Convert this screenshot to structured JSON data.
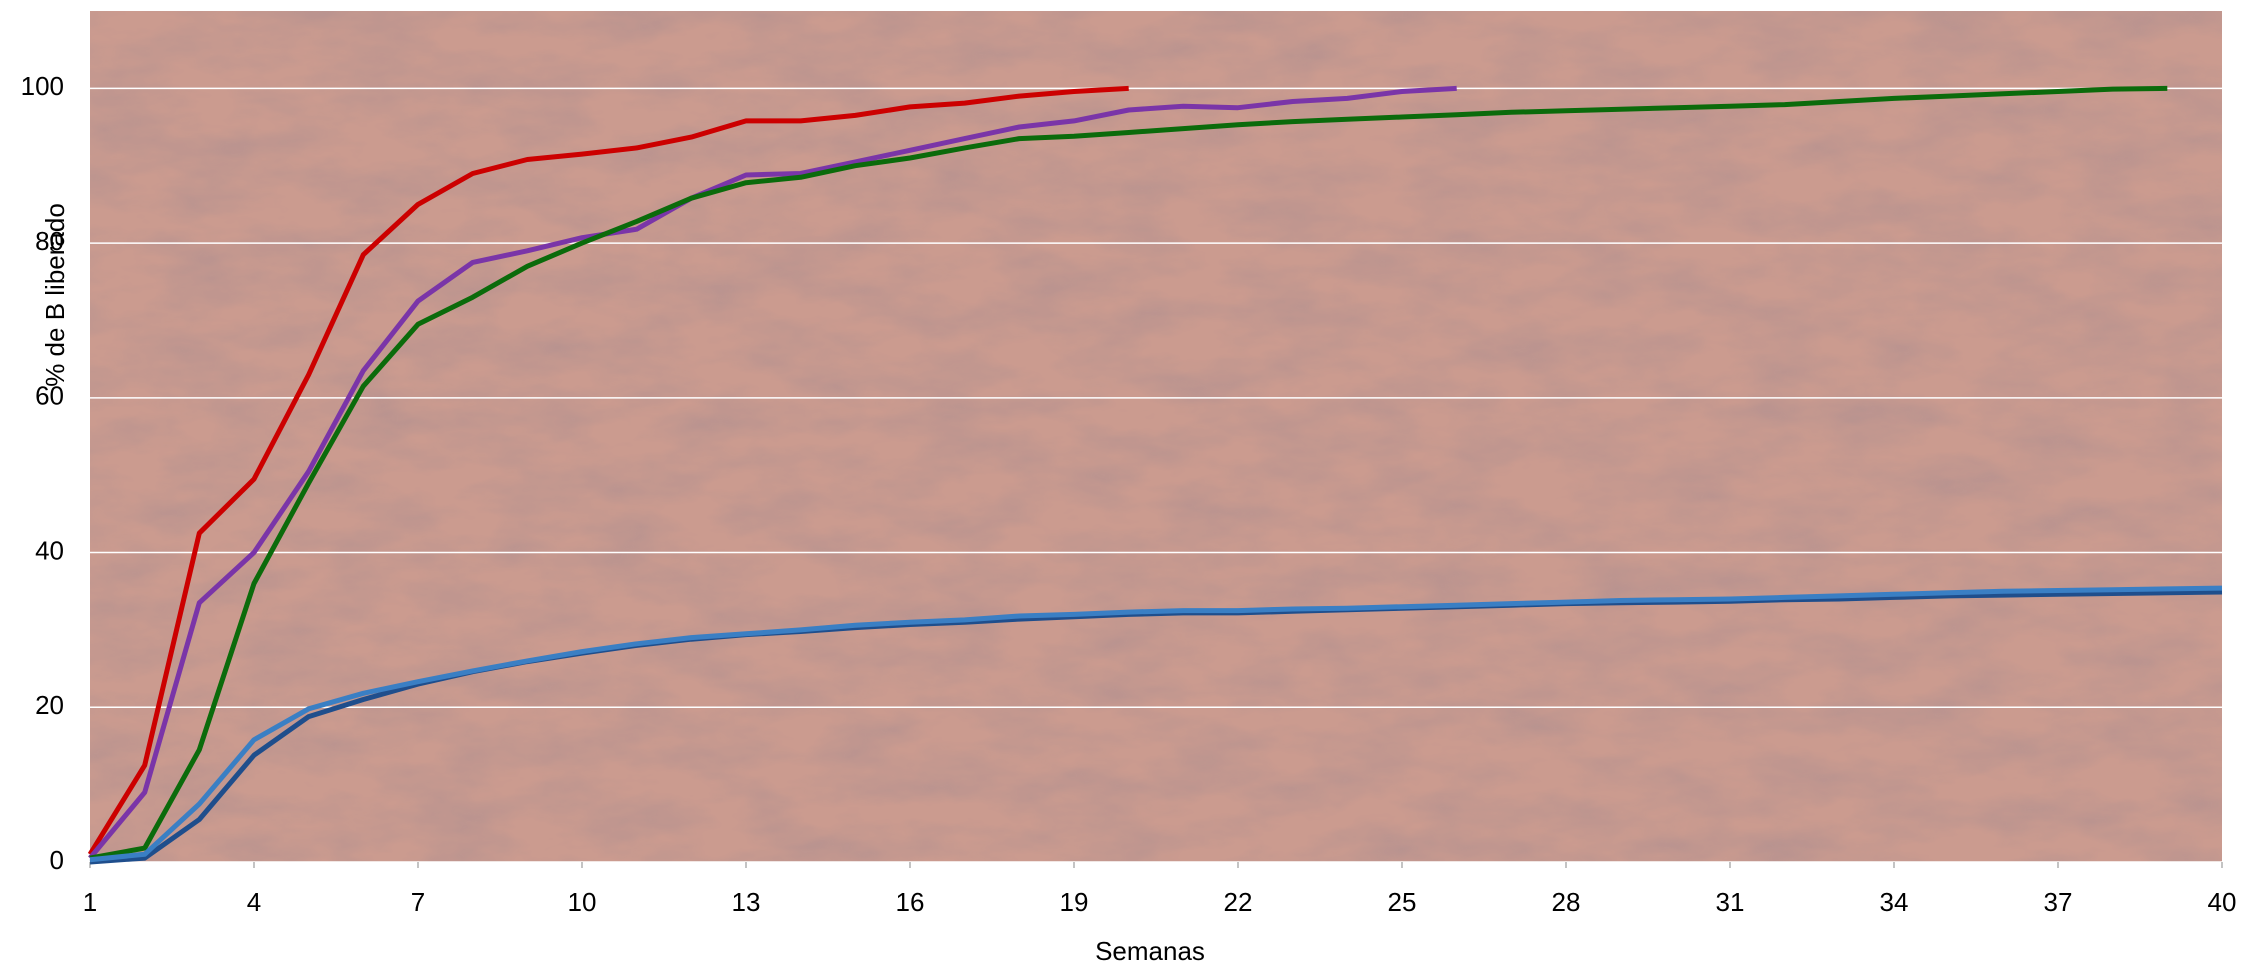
{
  "chart_data": {
    "type": "line",
    "x_label": "Semanas",
    "y_label": "% de B liberado",
    "x": [
      1,
      2,
      3,
      4,
      5,
      6,
      7,
      8,
      9,
      10,
      11,
      12,
      13,
      14,
      15,
      16,
      17,
      18,
      19,
      20,
      21,
      22,
      23,
      24,
      25,
      26,
      27,
      28,
      29,
      30,
      31,
      32,
      33,
      34,
      35,
      36,
      37,
      38,
      39,
      40
    ],
    "xlim": [
      1,
      40
    ],
    "xticks": [
      1,
      4,
      7,
      10,
      13,
      16,
      19,
      22,
      25,
      28,
      31,
      34,
      37,
      40
    ],
    "ylim": [
      0,
      110
    ],
    "yticks": [
      0,
      20,
      40,
      60,
      80,
      100
    ],
    "grid": true,
    "series": [
      {
        "color": "#cc0000",
        "values": [
          1,
          12.5,
          42.5,
          49.5,
          63,
          78.5,
          85,
          89,
          90.8,
          91.5,
          92.3,
          93.7,
          95.8,
          95.8,
          96.5,
          97.6,
          98.1,
          99,
          99.6,
          100,
          null,
          null,
          null,
          null,
          null,
          null,
          null,
          null,
          null,
          null,
          null,
          null,
          null,
          null,
          null,
          null,
          null,
          null,
          null,
          null
        ]
      },
      {
        "color": "#7a35a8",
        "values": [
          0.5,
          9,
          33.5,
          40,
          50.5,
          63.5,
          72.5,
          77.5,
          79,
          80.7,
          81.8,
          85.8,
          88.8,
          89,
          90.5,
          92,
          93.5,
          95,
          95.8,
          97.2,
          97.7,
          97.5,
          98.3,
          98.7,
          99.6,
          100,
          null,
          null,
          null,
          null,
          null,
          null,
          null,
          null,
          null,
          null,
          null,
          null,
          null,
          null
        ]
      },
      {
        "color": "#0b6b0b",
        "values": [
          0.5,
          1.8,
          14.5,
          36,
          49,
          61.5,
          69.5,
          73,
          77,
          80,
          82.8,
          85.8,
          87.8,
          88.5,
          90,
          91,
          92.3,
          93.5,
          93.8,
          94.3,
          94.8,
          95.3,
          95.7,
          96,
          96.3,
          96.6,
          96.9,
          97.1,
          97.3,
          97.5,
          97.7,
          97.9,
          98.3,
          98.7,
          99,
          99.3,
          99.6,
          99.9,
          100,
          null
        ]
      },
      {
        "color": "#1f4e8c",
        "values": [
          0,
          0.5,
          5.5,
          13.8,
          18.8,
          21,
          23,
          24.6,
          25.9,
          27,
          28,
          28.8,
          29.4,
          29.8,
          30.3,
          30.7,
          31,
          31.4,
          31.7,
          32,
          32.2,
          32.2,
          32.4,
          32.6,
          32.8,
          33,
          33.2,
          33.4,
          33.5,
          33.6,
          33.7,
          33.9,
          34,
          34.2,
          34.4,
          34.5,
          34.6,
          34.7,
          34.8,
          34.9
        ]
      },
      {
        "color": "#3a7fc4",
        "values": [
          0.3,
          1,
          7.5,
          15.8,
          19.8,
          21.8,
          23.3,
          24.7,
          26,
          27.2,
          28.2,
          29,
          29.5,
          30,
          30.6,
          31,
          31.3,
          31.8,
          32,
          32.3,
          32.5,
          32.5,
          32.7,
          32.8,
          33,
          33.2,
          33.4,
          33.6,
          33.8,
          33.9,
          34,
          34.2,
          34.4,
          34.6,
          34.8,
          35,
          35.1,
          35.2,
          35.3,
          35.4
        ]
      }
    ]
  }
}
